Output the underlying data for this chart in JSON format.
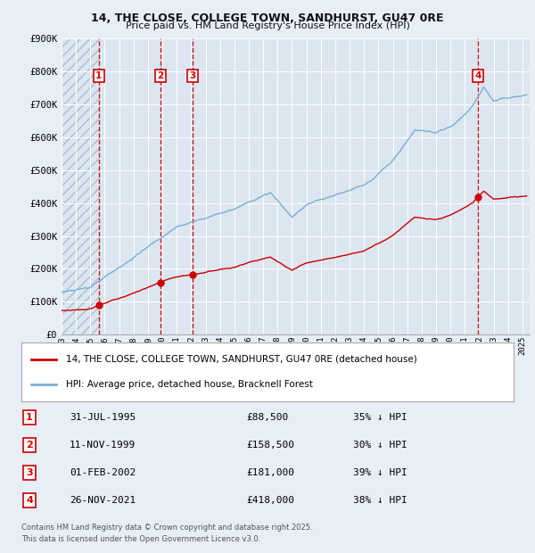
{
  "title1": "14, THE CLOSE, COLLEGE TOWN, SANDHURST, GU47 0RE",
  "title2": "Price paid vs. HM Land Registry's House Price Index (HPI)",
  "background_color": "#e8eef5",
  "plot_bg_color": "#dce6f0",
  "grid_color": "#ffffff",
  "red_line_color": "#cc0000",
  "blue_line_color": "#7bafd4",
  "vline_color": "#cc0000",
  "purchases": [
    {
      "date_num": 1995.58,
      "price": 88500,
      "label": "1",
      "date_str": "31-JUL-1995",
      "pct": "35%"
    },
    {
      "date_num": 1999.87,
      "price": 158500,
      "label": "2",
      "date_str": "11-NOV-1999",
      "pct": "30%"
    },
    {
      "date_num": 2002.09,
      "price": 181000,
      "label": "3",
      "date_str": "01-FEB-2002",
      "pct": "39%"
    },
    {
      "date_num": 2021.91,
      "price": 418000,
      "label": "4",
      "date_str": "26-NOV-2021",
      "pct": "38%"
    }
  ],
  "xlim": [
    1993.0,
    2025.5
  ],
  "ylim": [
    0,
    900000
  ],
  "yticks": [
    0,
    100000,
    200000,
    300000,
    400000,
    500000,
    600000,
    700000,
    800000,
    900000
  ],
  "ytick_labels": [
    "£0",
    "£100K",
    "£200K",
    "£300K",
    "£400K",
    "£500K",
    "£600K",
    "£700K",
    "£800K",
    "£900K"
  ],
  "legend_label_red": "14, THE CLOSE, COLLEGE TOWN, SANDHURST, GU47 0RE (detached house)",
  "legend_label_blue": "HPI: Average price, detached house, Bracknell Forest",
  "footer1": "Contains HM Land Registry data © Crown copyright and database right 2025.",
  "footer2": "This data is licensed under the Open Government Licence v3.0.",
  "hatch_end": 1995.58
}
